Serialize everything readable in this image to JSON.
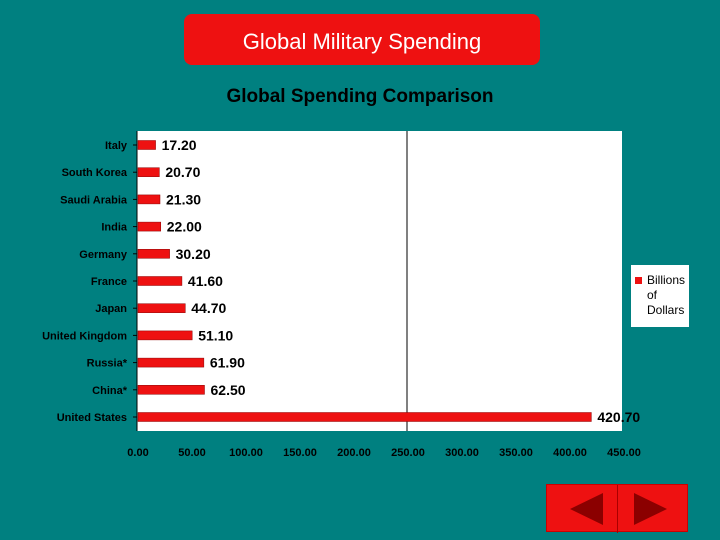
{
  "slide": {
    "banner_title": "Global Military Spending"
  },
  "chart_data": {
    "type": "bar",
    "orientation": "horizontal",
    "title": "Global Spending Comparison",
    "categories": [
      "Italy",
      "South Korea",
      "Saudi Arabia",
      "India",
      "Germany",
      "France",
      "Japan",
      "United Kingdom",
      "Russia*",
      "China*",
      "United States"
    ],
    "values": [
      17.2,
      20.7,
      21.3,
      22.0,
      30.2,
      41.6,
      44.7,
      51.1,
      61.9,
      62.5,
      420.7
    ],
    "value_labels": [
      "17.20",
      "20.70",
      "21.30",
      "22.00",
      "30.20",
      "41.60",
      "44.70",
      "51.10",
      "61.90",
      "62.50",
      "420.70"
    ],
    "xlim": [
      0,
      450
    ],
    "x_ticks": [
      "0.00",
      "50.00",
      "100.00",
      "150.00",
      "200.00",
      "250.00",
      "300.00",
      "350.00",
      "400.00",
      "450.00"
    ],
    "x_tick_values": [
      0,
      50,
      100,
      150,
      200,
      250,
      300,
      350,
      400,
      450
    ],
    "reference_line_x": 250,
    "legend": {
      "entries": [
        "Billions of Dollars"
      ],
      "placement": "right"
    },
    "colors": {
      "bar": "#ee1111",
      "plot_bg": "#ffffff",
      "background": "#008080"
    }
  },
  "nav": {
    "prev": "arrow-left-icon",
    "next": "arrow-right-icon"
  }
}
